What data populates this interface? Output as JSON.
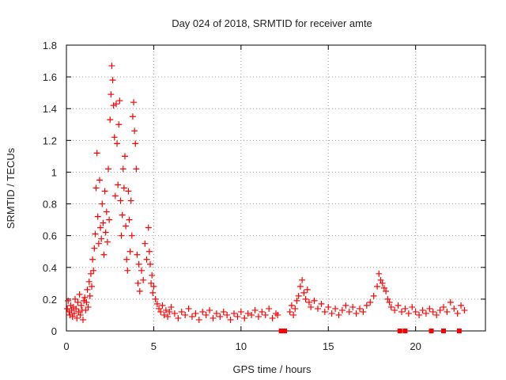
{
  "chart_data": {
    "type": "scatter",
    "title": "Day 024 of 2018, SRMTID for receiver amte",
    "xlabel": "GPS time / hours",
    "ylabel": "SRMTID / TECUs",
    "xlim": [
      0,
      24
    ],
    "ylim": [
      0,
      1.8
    ],
    "x_ticks": [
      0,
      5,
      10,
      15,
      20
    ],
    "x_tick_labels": [
      "0",
      "5",
      "10",
      "15",
      "20"
    ],
    "y_ticks": [
      0,
      0.2,
      0.4,
      0.6,
      0.8,
      1.0,
      1.2,
      1.4,
      1.6,
      1.8
    ],
    "y_tick_labels": [
      "0",
      "0.2",
      "0.4",
      "0.6",
      "0.8",
      "1",
      "1.2",
      "1.4",
      "1.6",
      "1.8"
    ],
    "grid": true,
    "marker": "+",
    "color": "#ff0000",
    "series": [
      {
        "name": "SRMTID",
        "points": [
          [
            0.05,
            0.14
          ],
          [
            0.1,
            0.19
          ],
          [
            0.15,
            0.12
          ],
          [
            0.2,
            0.1
          ],
          [
            0.25,
            0.16
          ],
          [
            0.3,
            0.13
          ],
          [
            0.35,
            0.09
          ],
          [
            0.4,
            0.15
          ],
          [
            0.45,
            0.11
          ],
          [
            0.5,
            0.2
          ],
          [
            0.55,
            0.14
          ],
          [
            0.6,
            0.08
          ],
          [
            0.65,
            0.18
          ],
          [
            0.7,
            0.12
          ],
          [
            0.75,
            0.23
          ],
          [
            0.8,
            0.1
          ],
          [
            0.85,
            0.16
          ],
          [
            0.9,
            0.13
          ],
          [
            0.95,
            0.07
          ],
          [
            1.0,
            0.19
          ],
          [
            1.05,
            0.21
          ],
          [
            1.1,
            0.13
          ],
          [
            1.15,
            0.18
          ],
          [
            1.2,
            0.26
          ],
          [
            1.25,
            0.15
          ],
          [
            1.3,
            0.31
          ],
          [
            1.35,
            0.22
          ],
          [
            1.4,
            0.36
          ],
          [
            1.45,
            0.28
          ],
          [
            1.5,
            0.45
          ],
          [
            1.55,
            0.38
          ],
          [
            1.6,
            0.52
          ],
          [
            1.65,
            0.61
          ],
          [
            1.7,
            0.9
          ],
          [
            1.75,
            1.12
          ],
          [
            1.8,
            0.72
          ],
          [
            1.85,
            0.55
          ],
          [
            1.9,
            0.95
          ],
          [
            1.95,
            0.65
          ],
          [
            2.0,
            0.58
          ],
          [
            2.05,
            0.8
          ],
          [
            2.1,
            0.68
          ],
          [
            2.15,
            0.48
          ],
          [
            2.2,
            0.88
          ],
          [
            2.25,
            0.62
          ],
          [
            2.3,
            0.75
          ],
          [
            2.35,
            0.56
          ],
          [
            2.4,
            1.02
          ],
          [
            2.45,
            0.7
          ],
          [
            2.5,
            1.33
          ],
          [
            2.55,
            1.49
          ],
          [
            2.6,
            1.67
          ],
          [
            2.65,
            1.58
          ],
          [
            2.7,
            1.42
          ],
          [
            2.75,
            1.22
          ],
          [
            2.8,
            0.85
          ],
          [
            2.85,
            1.43
          ],
          [
            2.9,
            1.18
          ],
          [
            2.95,
            0.92
          ],
          [
            3.0,
            1.3
          ],
          [
            3.05,
            1.45
          ],
          [
            3.1,
            0.82
          ],
          [
            3.15,
            0.6
          ],
          [
            3.2,
            0.73
          ],
          [
            3.25,
            1.02
          ],
          [
            3.3,
            0.9
          ],
          [
            3.35,
            1.1
          ],
          [
            3.4,
            0.66
          ],
          [
            3.45,
            0.45
          ],
          [
            3.5,
            0.38
          ],
          [
            3.55,
            0.88
          ],
          [
            3.6,
            0.7
          ],
          [
            3.65,
            0.5
          ],
          [
            3.7,
            0.82
          ],
          [
            3.75,
            0.6
          ],
          [
            3.8,
            1.35
          ],
          [
            3.85,
            1.44
          ],
          [
            3.9,
            1.26
          ],
          [
            3.95,
            1.18
          ],
          [
            4.0,
            1.02
          ],
          [
            4.05,
            0.48
          ],
          [
            4.1,
            0.3
          ],
          [
            4.15,
            0.42
          ],
          [
            4.2,
            0.25
          ],
          [
            4.3,
            0.38
          ],
          [
            4.4,
            0.32
          ],
          [
            4.5,
            0.55
          ],
          [
            4.6,
            0.45
          ],
          [
            4.7,
            0.65
          ],
          [
            4.75,
            0.5
          ],
          [
            4.8,
            0.42
          ],
          [
            4.85,
            0.3
          ],
          [
            4.9,
            0.35
          ],
          [
            4.95,
            0.24
          ],
          [
            5.0,
            0.28
          ],
          [
            5.1,
            0.2
          ],
          [
            5.2,
            0.17
          ],
          [
            5.3,
            0.14
          ],
          [
            5.4,
            0.12
          ],
          [
            5.5,
            0.16
          ],
          [
            5.6,
            0.1
          ],
          [
            5.7,
            0.13
          ],
          [
            5.8,
            0.09
          ],
          [
            5.9,
            0.12
          ],
          [
            6.0,
            0.15
          ],
          [
            6.2,
            0.11
          ],
          [
            6.4,
            0.08
          ],
          [
            6.6,
            0.12
          ],
          [
            6.8,
            0.1
          ],
          [
            7.0,
            0.14
          ],
          [
            7.2,
            0.09
          ],
          [
            7.4,
            0.11
          ],
          [
            7.6,
            0.07
          ],
          [
            7.8,
            0.12
          ],
          [
            8.0,
            0.1
          ],
          [
            8.2,
            0.13
          ],
          [
            8.4,
            0.08
          ],
          [
            8.6,
            0.11
          ],
          [
            8.8,
            0.09
          ],
          [
            9.0,
            0.12
          ],
          [
            9.2,
            0.1
          ],
          [
            9.4,
            0.07
          ],
          [
            9.6,
            0.11
          ],
          [
            9.8,
            0.09
          ],
          [
            10.0,
            0.12
          ],
          [
            10.2,
            0.08
          ],
          [
            10.4,
            0.11
          ],
          [
            10.6,
            0.1
          ],
          [
            10.8,
            0.13
          ],
          [
            11.0,
            0.09
          ],
          [
            11.2,
            0.12
          ],
          [
            11.4,
            0.1
          ],
          [
            11.6,
            0.14
          ],
          [
            11.8,
            0.08
          ],
          [
            12.0,
            0.11
          ],
          [
            12.1,
            0.1
          ],
          [
            12.8,
            0.12
          ],
          [
            12.9,
            0.16
          ],
          [
            13.0,
            0.1
          ],
          [
            13.1,
            0.14
          ],
          [
            13.2,
            0.19
          ],
          [
            13.3,
            0.22
          ],
          [
            13.4,
            0.28
          ],
          [
            13.5,
            0.32
          ],
          [
            13.6,
            0.24
          ],
          [
            13.7,
            0.2
          ],
          [
            13.8,
            0.26
          ],
          [
            13.9,
            0.18
          ],
          [
            14.0,
            0.15
          ],
          [
            14.2,
            0.19
          ],
          [
            14.4,
            0.14
          ],
          [
            14.6,
            0.17
          ],
          [
            14.8,
            0.12
          ],
          [
            15.0,
            0.15
          ],
          [
            15.2,
            0.11
          ],
          [
            15.4,
            0.14
          ],
          [
            15.6,
            0.1
          ],
          [
            15.8,
            0.13
          ],
          [
            16.0,
            0.16
          ],
          [
            16.2,
            0.12
          ],
          [
            16.4,
            0.15
          ],
          [
            16.6,
            0.11
          ],
          [
            16.8,
            0.14
          ],
          [
            17.0,
            0.12
          ],
          [
            17.2,
            0.16
          ],
          [
            17.4,
            0.18
          ],
          [
            17.6,
            0.22
          ],
          [
            17.8,
            0.28
          ],
          [
            17.9,
            0.36
          ],
          [
            18.0,
            0.32
          ],
          [
            18.1,
            0.3
          ],
          [
            18.2,
            0.27
          ],
          [
            18.3,
            0.25
          ],
          [
            18.4,
            0.2
          ],
          [
            18.5,
            0.18
          ],
          [
            18.6,
            0.15
          ],
          [
            18.8,
            0.13
          ],
          [
            19.0,
            0.16
          ],
          [
            19.2,
            0.12
          ],
          [
            19.4,
            0.14
          ],
          [
            19.6,
            0.11
          ],
          [
            19.8,
            0.15
          ],
          [
            20.0,
            0.12
          ],
          [
            20.2,
            0.1
          ],
          [
            20.4,
            0.13
          ],
          [
            20.6,
            0.11
          ],
          [
            20.8,
            0.14
          ],
          [
            21.0,
            0.12
          ],
          [
            21.2,
            0.1
          ],
          [
            21.4,
            0.13
          ],
          [
            21.6,
            0.15
          ],
          [
            21.8,
            0.12
          ],
          [
            22.0,
            0.18
          ],
          [
            22.2,
            0.14
          ],
          [
            22.4,
            0.11
          ],
          [
            22.6,
            0.16
          ],
          [
            22.8,
            0.13
          ]
        ]
      }
    ],
    "baseline_markers_x": [
      12.3,
      12.4,
      12.5,
      19.1,
      19.4,
      20.9,
      21.6,
      22.5
    ]
  }
}
